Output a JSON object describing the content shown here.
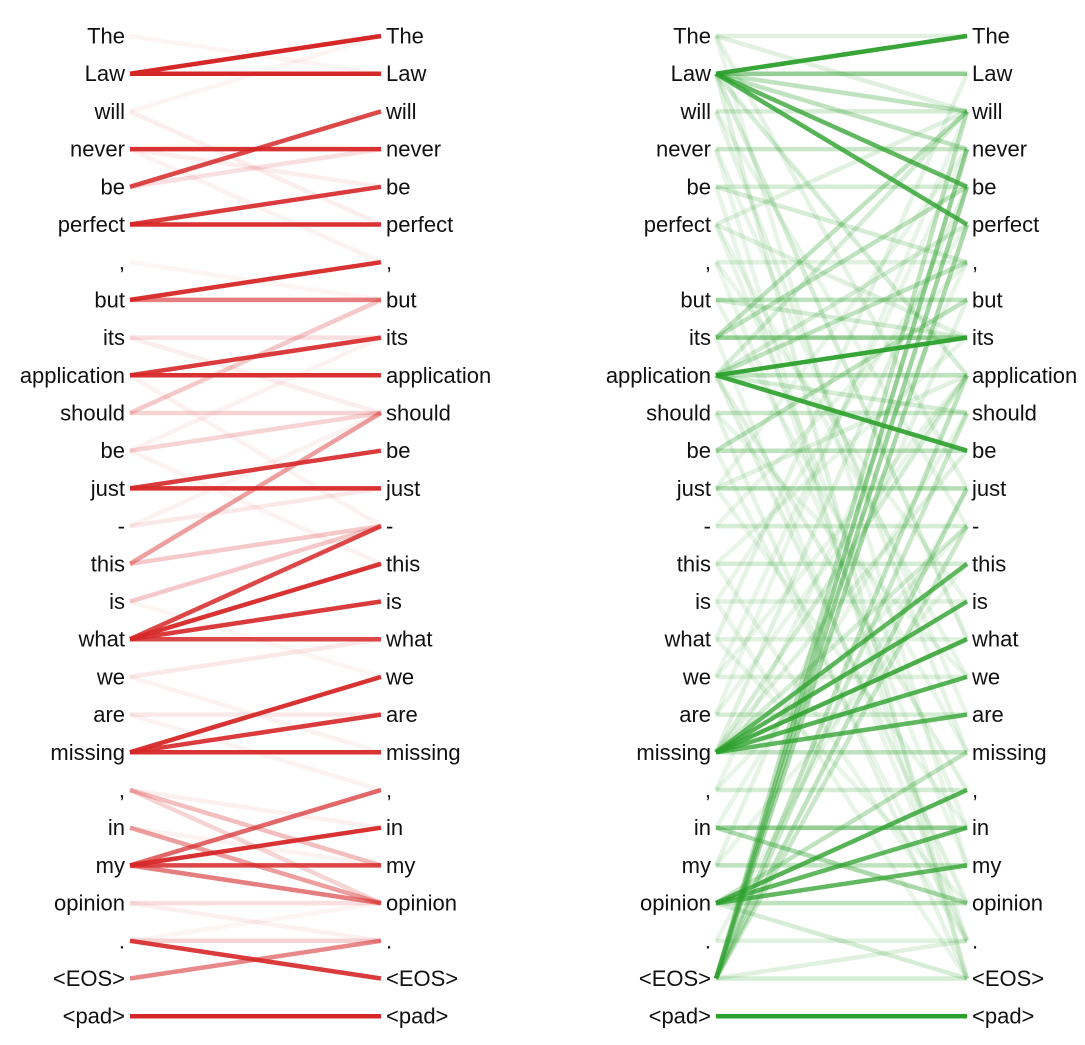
{
  "tokens": [
    "The",
    "Law",
    "will",
    "never",
    "be",
    "perfect",
    ",",
    "but",
    "its",
    "application",
    "should",
    "be",
    "just",
    "-",
    "this",
    "is",
    "what",
    "we",
    "are",
    "missing",
    ",",
    "in",
    "my",
    "opinion",
    ".",
    "<EOS>",
    "<pad>"
  ],
  "panels": [
    {
      "name": "red-panel",
      "color": "#d62728",
      "links": [
        [
          1,
          0,
          1.0
        ],
        [
          1,
          1,
          1.0
        ],
        [
          3,
          3,
          0.95
        ],
        [
          4,
          2,
          0.85
        ],
        [
          4,
          3,
          0.15
        ],
        [
          5,
          4,
          0.9
        ],
        [
          5,
          5,
          0.95
        ],
        [
          7,
          6,
          0.95
        ],
        [
          7,
          7,
          0.6
        ],
        [
          8,
          8,
          0.15
        ],
        [
          9,
          8,
          0.9
        ],
        [
          9,
          9,
          0.95
        ],
        [
          10,
          7,
          0.25
        ],
        [
          10,
          10,
          0.2
        ],
        [
          11,
          10,
          0.2
        ],
        [
          12,
          11,
          0.9
        ],
        [
          12,
          12,
          0.95
        ],
        [
          13,
          12,
          0.1
        ],
        [
          14,
          10,
          0.45
        ],
        [
          14,
          13,
          0.25
        ],
        [
          15,
          13,
          0.25
        ],
        [
          16,
          13,
          0.85
        ],
        [
          16,
          14,
          0.95
        ],
        [
          16,
          15,
          0.9
        ],
        [
          16,
          16,
          0.85
        ],
        [
          17,
          16,
          0.1
        ],
        [
          18,
          18,
          0.1
        ],
        [
          19,
          17,
          0.95
        ],
        [
          19,
          18,
          0.9
        ],
        [
          19,
          19,
          0.95
        ],
        [
          20,
          22,
          0.3
        ],
        [
          20,
          23,
          0.2
        ],
        [
          21,
          23,
          0.45
        ],
        [
          22,
          20,
          0.7
        ],
        [
          22,
          21,
          0.95
        ],
        [
          22,
          22,
          0.85
        ],
        [
          22,
          23,
          0.6
        ],
        [
          23,
          23,
          0.15
        ],
        [
          24,
          25,
          0.9
        ],
        [
          24,
          24,
          0.2
        ],
        [
          25,
          24,
          0.55
        ],
        [
          26,
          26,
          1.0
        ],
        [
          0,
          1,
          0.05
        ],
        [
          2,
          5,
          0.08
        ],
        [
          3,
          6,
          0.06
        ],
        [
          6,
          7,
          0.05
        ],
        [
          8,
          10,
          0.08
        ],
        [
          9,
          13,
          0.06
        ],
        [
          11,
          14,
          0.06
        ],
        [
          13,
          10,
          0.06
        ],
        [
          15,
          17,
          0.05
        ],
        [
          17,
          19,
          0.06
        ],
        [
          18,
          20,
          0.06
        ],
        [
          20,
          21,
          0.07
        ],
        [
          21,
          22,
          0.06
        ],
        [
          23,
          24,
          0.07
        ],
        [
          24,
          23,
          0.05
        ],
        [
          2,
          0,
          0.05
        ],
        [
          3,
          4,
          0.08
        ],
        [
          11,
          8,
          0.06
        ]
      ]
    },
    {
      "name": "green-panel",
      "color": "#2ca02c",
      "links": [
        [
          1,
          0,
          0.95
        ],
        [
          1,
          1,
          0.5
        ],
        [
          1,
          4,
          0.75
        ],
        [
          1,
          5,
          0.8
        ],
        [
          1,
          2,
          0.3
        ],
        [
          1,
          3,
          0.3
        ],
        [
          1,
          9,
          0.2
        ],
        [
          1,
          16,
          0.2
        ],
        [
          1,
          25,
          0.15
        ],
        [
          0,
          0,
          0.15
        ],
        [
          0,
          2,
          0.15
        ],
        [
          2,
          2,
          0.2
        ],
        [
          3,
          3,
          0.25
        ],
        [
          4,
          4,
          0.2
        ],
        [
          4,
          6,
          0.2
        ],
        [
          5,
          2,
          0.15
        ],
        [
          5,
          8,
          0.15
        ],
        [
          6,
          6,
          0.15
        ],
        [
          7,
          7,
          0.3
        ],
        [
          7,
          8,
          0.2
        ],
        [
          8,
          8,
          0.5
        ],
        [
          8,
          4,
          0.3
        ],
        [
          8,
          2,
          0.3
        ],
        [
          9,
          8,
          0.95
        ],
        [
          9,
          11,
          0.9
        ],
        [
          9,
          9,
          0.3
        ],
        [
          9,
          6,
          0.3
        ],
        [
          9,
          10,
          0.2
        ],
        [
          9,
          5,
          0.2
        ],
        [
          9,
          2,
          0.2
        ],
        [
          9,
          20,
          0.15
        ],
        [
          9,
          23,
          0.15
        ],
        [
          10,
          10,
          0.25
        ],
        [
          11,
          11,
          0.3
        ],
        [
          11,
          7,
          0.3
        ],
        [
          12,
          12,
          0.35
        ],
        [
          12,
          9,
          0.15
        ],
        [
          13,
          13,
          0.2
        ],
        [
          14,
          14,
          0.2
        ],
        [
          15,
          15,
          0.15
        ],
        [
          16,
          16,
          0.15
        ],
        [
          17,
          17,
          0.15
        ],
        [
          18,
          18,
          0.2
        ],
        [
          19,
          14,
          0.75
        ],
        [
          19,
          15,
          0.8
        ],
        [
          19,
          16,
          0.85
        ],
        [
          19,
          17,
          0.8
        ],
        [
          19,
          18,
          0.75
        ],
        [
          19,
          19,
          0.3
        ],
        [
          19,
          13,
          0.2
        ],
        [
          19,
          11,
          0.15
        ],
        [
          19,
          9,
          0.2
        ],
        [
          19,
          4,
          0.15
        ],
        [
          20,
          20,
          0.2
        ],
        [
          21,
          21,
          0.5
        ],
        [
          21,
          23,
          0.4
        ],
        [
          22,
          22,
          0.3
        ],
        [
          23,
          23,
          0.3
        ],
        [
          23,
          20,
          0.8
        ],
        [
          23,
          21,
          0.75
        ],
        [
          23,
          22,
          0.75
        ],
        [
          23,
          19,
          0.3
        ],
        [
          23,
          25,
          0.2
        ],
        [
          25,
          3,
          0.5
        ],
        [
          25,
          4,
          0.45
        ],
        [
          25,
          5,
          0.4
        ],
        [
          25,
          2,
          0.3
        ],
        [
          25,
          9,
          0.3
        ],
        [
          25,
          10,
          0.25
        ],
        [
          25,
          13,
          0.25
        ],
        [
          25,
          12,
          0.3
        ],
        [
          25,
          25,
          0.2
        ],
        [
          25,
          24,
          0.15
        ],
        [
          24,
          24,
          0.15
        ],
        [
          26,
          26,
          1.0
        ],
        [
          0,
          12,
          0.12
        ],
        [
          2,
          19,
          0.12
        ],
        [
          3,
          25,
          0.1
        ],
        [
          4,
          24,
          0.1
        ],
        [
          5,
          21,
          0.1
        ],
        [
          6,
          15,
          0.1
        ],
        [
          10,
          25,
          0.12
        ],
        [
          11,
          24,
          0.1
        ],
        [
          12,
          3,
          0.1
        ],
        [
          13,
          6,
          0.1
        ],
        [
          14,
          8,
          0.1
        ],
        [
          15,
          5,
          0.1
        ],
        [
          16,
          1,
          0.12
        ],
        [
          17,
          9,
          0.1
        ],
        [
          18,
          2,
          0.1
        ],
        [
          20,
          13,
          0.1
        ],
        [
          21,
          10,
          0.1
        ],
        [
          22,
          7,
          0.12
        ],
        [
          24,
          12,
          0.1
        ],
        [
          3,
          18,
          0.1
        ],
        [
          6,
          22,
          0.1
        ],
        [
          10,
          17,
          0.1
        ],
        [
          14,
          24,
          0.1
        ],
        [
          17,
          3,
          0.1
        ],
        [
          2,
          13,
          0.1
        ],
        [
          7,
          19,
          0.1
        ],
        [
          12,
          21,
          0.1
        ],
        [
          15,
          25,
          0.1
        ],
        [
          16,
          23,
          0.1
        ],
        [
          18,
          9,
          0.1
        ],
        [
          20,
          6,
          0.1
        ],
        [
          22,
          14,
          0.1
        ],
        [
          8,
          24,
          0.1
        ],
        [
          5,
          17,
          0.1
        ],
        [
          0,
          22,
          0.1
        ]
      ]
    }
  ]
}
